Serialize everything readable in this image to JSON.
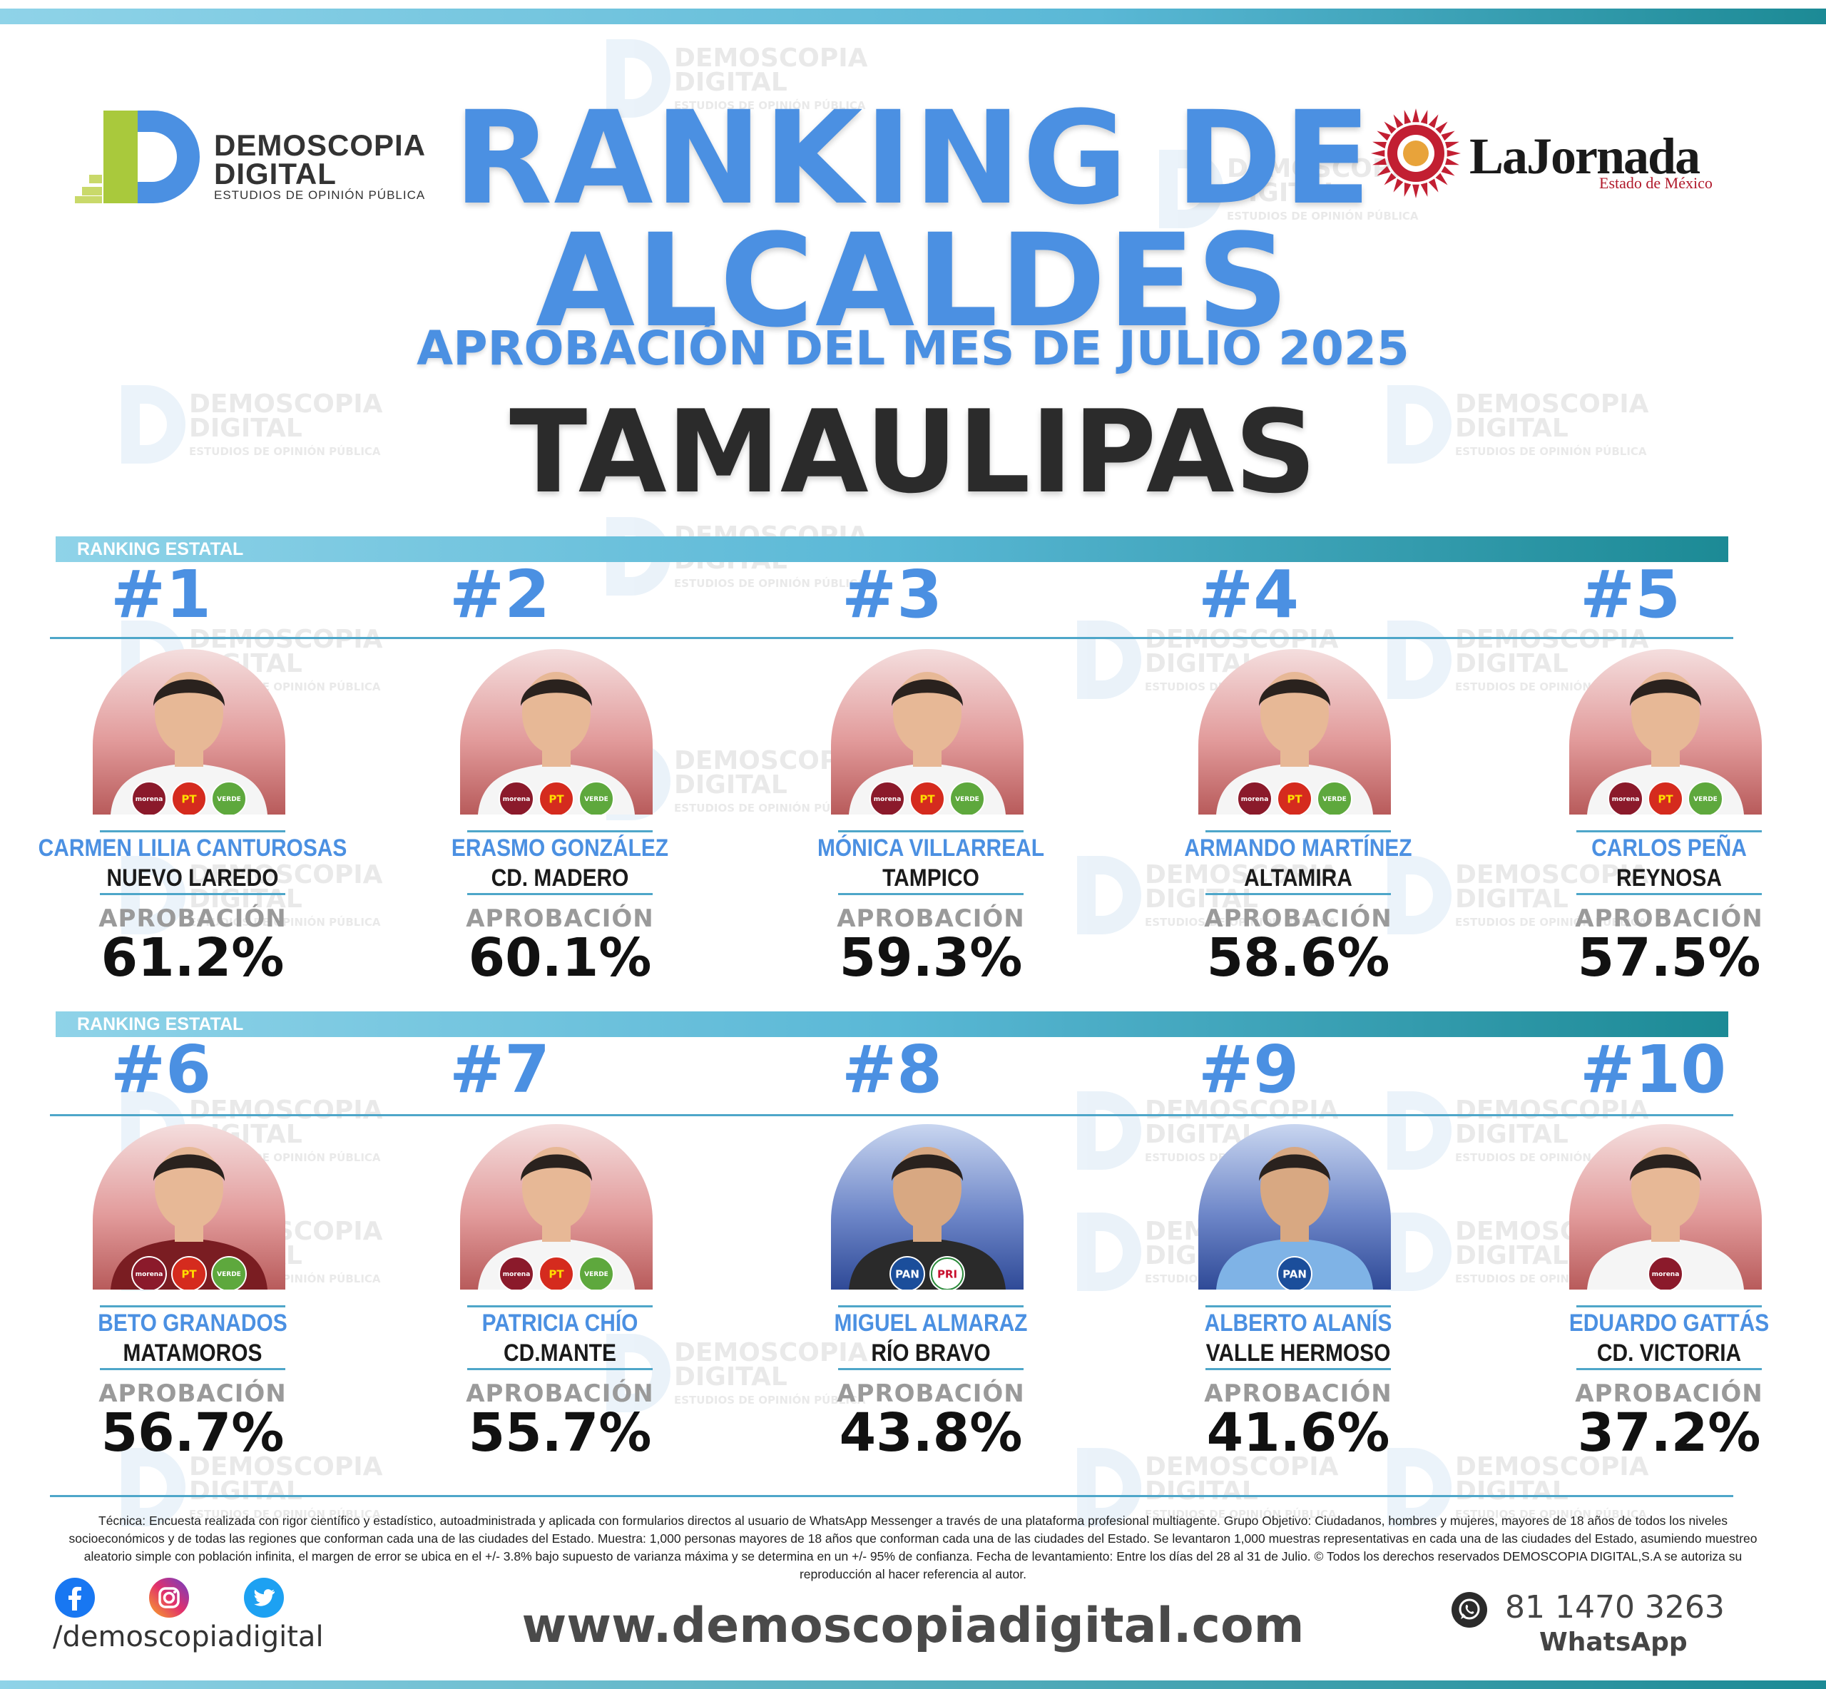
{
  "header": {
    "title_line1": "RANKING DE",
    "title_line2": "ALCALDES",
    "subtitle": "APROBACIÓN DEL MES DE JULIO 2025",
    "state": "TAMAULIPAS"
  },
  "logos": {
    "demoscopia": {
      "line1": "DEMOSCOPIA",
      "line2": "DIGITAL",
      "tagline": "ESTUDIOS DE OPINIÓN PÚBLICA"
    },
    "jornada": {
      "name": "LaJornada",
      "sub": "Estado de México"
    }
  },
  "bands": [
    "RANKING ESTATAL",
    "RANKING ESTATAL"
  ],
  "approval_label": "APROBACIÓN",
  "mayors": [
    {
      "rank": "#1",
      "name": "CARMEN LILIA CANTUROSAS",
      "city": "NUEVO LAREDO",
      "approval": "61.2%",
      "value": 61.2,
      "parties": [
        "morena",
        "PT",
        "VERDE"
      ],
      "bg": "red"
    },
    {
      "rank": "#2",
      "name": "ERASMO GONZÁLEZ",
      "city": "CD. MADERO",
      "approval": "60.1%",
      "value": 60.1,
      "parties": [
        "morena",
        "PT",
        "VERDE"
      ],
      "bg": "red"
    },
    {
      "rank": "#3",
      "name": "MÓNICA VILLARREAL",
      "city": "TAMPICO",
      "approval": "59.3%",
      "value": 59.3,
      "parties": [
        "morena",
        "PT",
        "VERDE"
      ],
      "bg": "red"
    },
    {
      "rank": "#4",
      "name": "ARMANDO MARTÍNEZ",
      "city": "ALTAMIRA",
      "approval": "58.6%",
      "value": 58.6,
      "parties": [
        "morena",
        "PT",
        "VERDE"
      ],
      "bg": "red"
    },
    {
      "rank": "#5",
      "name": "CARLOS PEÑA",
      "city": "REYNOSA",
      "approval": "57.5%",
      "value": 57.5,
      "parties": [
        "morena",
        "PT",
        "VERDE"
      ],
      "bg": "red"
    },
    {
      "rank": "#6",
      "name": "BETO GRANADOS",
      "city": "MATAMOROS",
      "approval": "56.7%",
      "value": 56.7,
      "parties": [
        "morena",
        "PT",
        "VERDE"
      ],
      "bg": "red"
    },
    {
      "rank": "#7",
      "name": "PATRICIA CHÍO",
      "city": "CD.MANTE",
      "approval": "55.7%",
      "value": 55.7,
      "parties": [
        "morena",
        "PT",
        "VERDE"
      ],
      "bg": "red"
    },
    {
      "rank": "#8",
      "name": "MIGUEL ALMARAZ",
      "city": "RÍO BRAVO",
      "approval": "43.8%",
      "value": 43.8,
      "parties": [
        "PAN",
        "PRI"
      ],
      "bg": "blue"
    },
    {
      "rank": "#9",
      "name": "ALBERTO ALANÍS",
      "city": "VALLE HERMOSO",
      "approval": "41.6%",
      "value": 41.6,
      "parties": [
        "PAN"
      ],
      "bg": "blue"
    },
    {
      "rank": "#10",
      "name": "EDUARDO GATTÁS",
      "city": "CD. VICTORIA",
      "approval": "37.2%",
      "value": 37.2,
      "parties": [
        "morena"
      ],
      "bg": "red"
    }
  ],
  "footnote": "Técnica: Encuesta realizada con rigor científico y estadístico, autoadministrada y aplicada con formularios directos al usuario de WhatsApp Messenger a través de una plataforma profesional multiagente. Grupo Objetivo: Ciudadanos, hombres y mujeres, mayores de 18 años de todos los niveles socioeconómicos y de todas las regiones que conforman cada una de las ciudades del Estado. Muestra: 1,000 personas mayores de 18 años que conforman cada una de las ciudades del Estado. Se levantaron 1,000 muestras representativas en cada una de las ciudades del Estado, asumiendo muestreo aleatorio simple con población infinita, el margen de error se ubica en el +/- 3.8% bajo supuesto de varianza máxima y se determina en un +/- 95% de confianza. Fecha de levantamiento: Entre los días del 28 al 31 de Julio. © Todos los derechos reservados DEMOSCOPIA DIGITAL,S.A se autoriza su reproducción al hacer referencia al autor.",
  "footer": {
    "social_handle": "/demoscopiadigital",
    "website": "www.demoscopiadigital.com",
    "phone": "81 1470 3263",
    "whatsapp_label": "WhatsApp",
    "icons": [
      "facebook-icon",
      "instagram-icon",
      "twitter-icon",
      "whatsapp-icon"
    ]
  },
  "colors": {
    "accent": "#4b90e2",
    "teal": "#1c8a95",
    "morena": "#8b1a2b",
    "pt": "#d52b1e",
    "verde": "#5ea83d",
    "pan": "#1b4e9b"
  }
}
